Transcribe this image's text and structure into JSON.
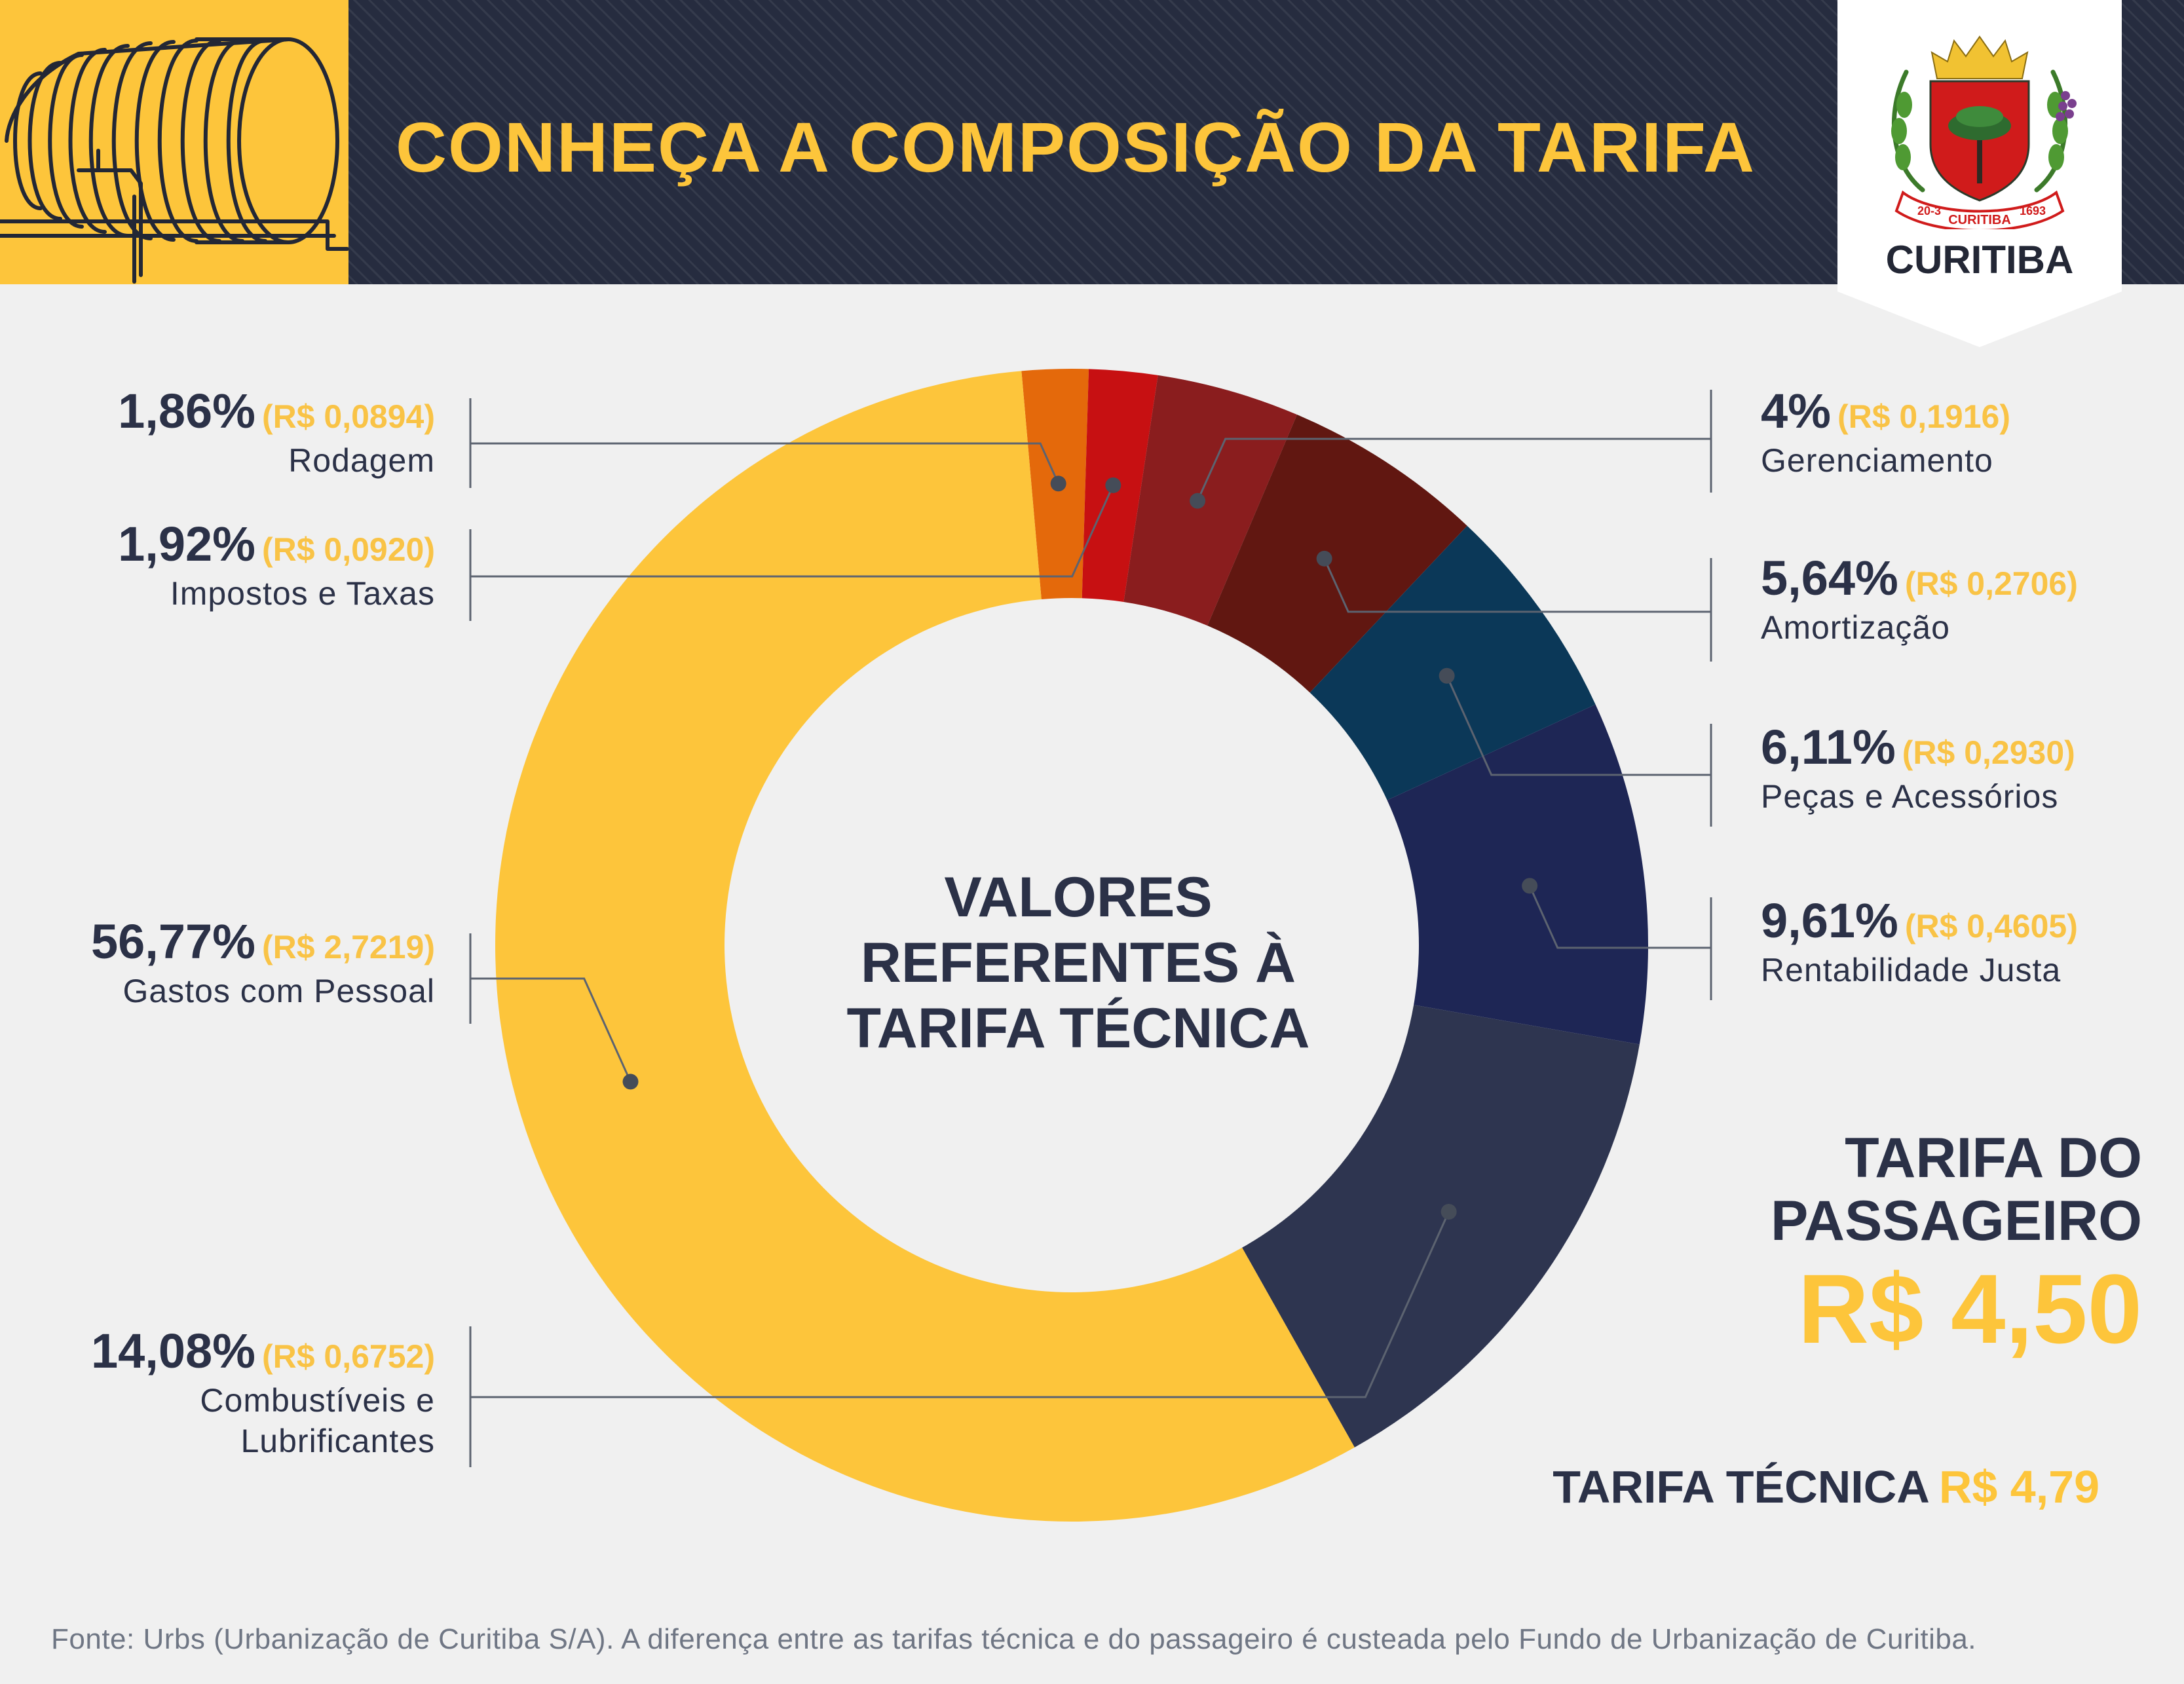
{
  "header": {
    "title": "CONHEÇA A COMPOSIÇÃO DA TARIFA",
    "city": "CURITIBA",
    "crest": {
      "ribbon_left": "20-3",
      "ribbon_center": "CURITIBA",
      "ribbon_right": "1693"
    }
  },
  "colors": {
    "yellow": "#fdc53b",
    "navy": "#262c3f",
    "text_dark": "#2b3147"
  },
  "chart_data": {
    "type": "pie",
    "variant": "donut",
    "center_title": [
      "VALORES",
      "REFERENTES À",
      "TARIFA TÉCNICA"
    ],
    "slices": [
      {
        "key": "rodagem",
        "name": "Rodagem",
        "pct": 1.86,
        "pct_label": "1,86%",
        "value": 0.0894,
        "value_label": "(R$ 0,0894)",
        "color": "#e4690b"
      },
      {
        "key": "impostos",
        "name": "Impostos e Taxas",
        "pct": 1.92,
        "pct_label": "1,92%",
        "value": 0.092,
        "value_label": "(R$ 0,0920)",
        "color": "#c71012"
      },
      {
        "key": "gerenciamento",
        "name": "Gerenciamento",
        "pct": 4.0,
        "pct_label": "4%",
        "value": 0.1916,
        "value_label": "(R$ 0,1916)",
        "color": "#8a1d1e"
      },
      {
        "key": "amortizacao",
        "name": "Amortização",
        "pct": 5.64,
        "pct_label": "5,64%",
        "value": 0.2706,
        "value_label": "(R$ 0,2706)",
        "color": "#611711"
      },
      {
        "key": "pecas",
        "name": "Peças e Acessórios",
        "pct": 6.11,
        "pct_label": "6,11%",
        "value": 0.293,
        "value_label": "(R$ 0,2930)",
        "color": "#0b3858"
      },
      {
        "key": "rentabilidade",
        "name": "Rentabilidade Justa",
        "pct": 9.61,
        "pct_label": "9,61%",
        "value": 0.4605,
        "value_label": "(R$ 0,4605)",
        "color": "#1e2655"
      },
      {
        "key": "combustiveis",
        "name": "Combustíveis e Lubrificantes",
        "name_lines": [
          "Combustíveis e",
          "Lubrificantes"
        ],
        "pct": 14.08,
        "pct_label": "14,08%",
        "value": 0.6752,
        "value_label": "(R$ 0,6752)",
        "color": "#2e3550"
      },
      {
        "key": "pessoal",
        "name": "Gastos com Pessoal",
        "pct": 56.77,
        "pct_label": "56,77%",
        "value": 2.7219,
        "value_label": "(R$ 2,7219)",
        "color": "#fdc53b"
      }
    ]
  },
  "fares": {
    "passenger_title_lines": [
      "TARIFA DO",
      "PASSAGEIRO"
    ],
    "passenger_value": "R$ 4,50",
    "technical_title": "TARIFA TÉCNICA",
    "technical_value": "R$ 4,79"
  },
  "footer": {
    "source": "Fonte: Urbs (Urbanização de Curitiba S/A). A diferença entre as tarifas técnica e do passageiro é custeada pelo Fundo de Urbanização de Curitiba."
  }
}
